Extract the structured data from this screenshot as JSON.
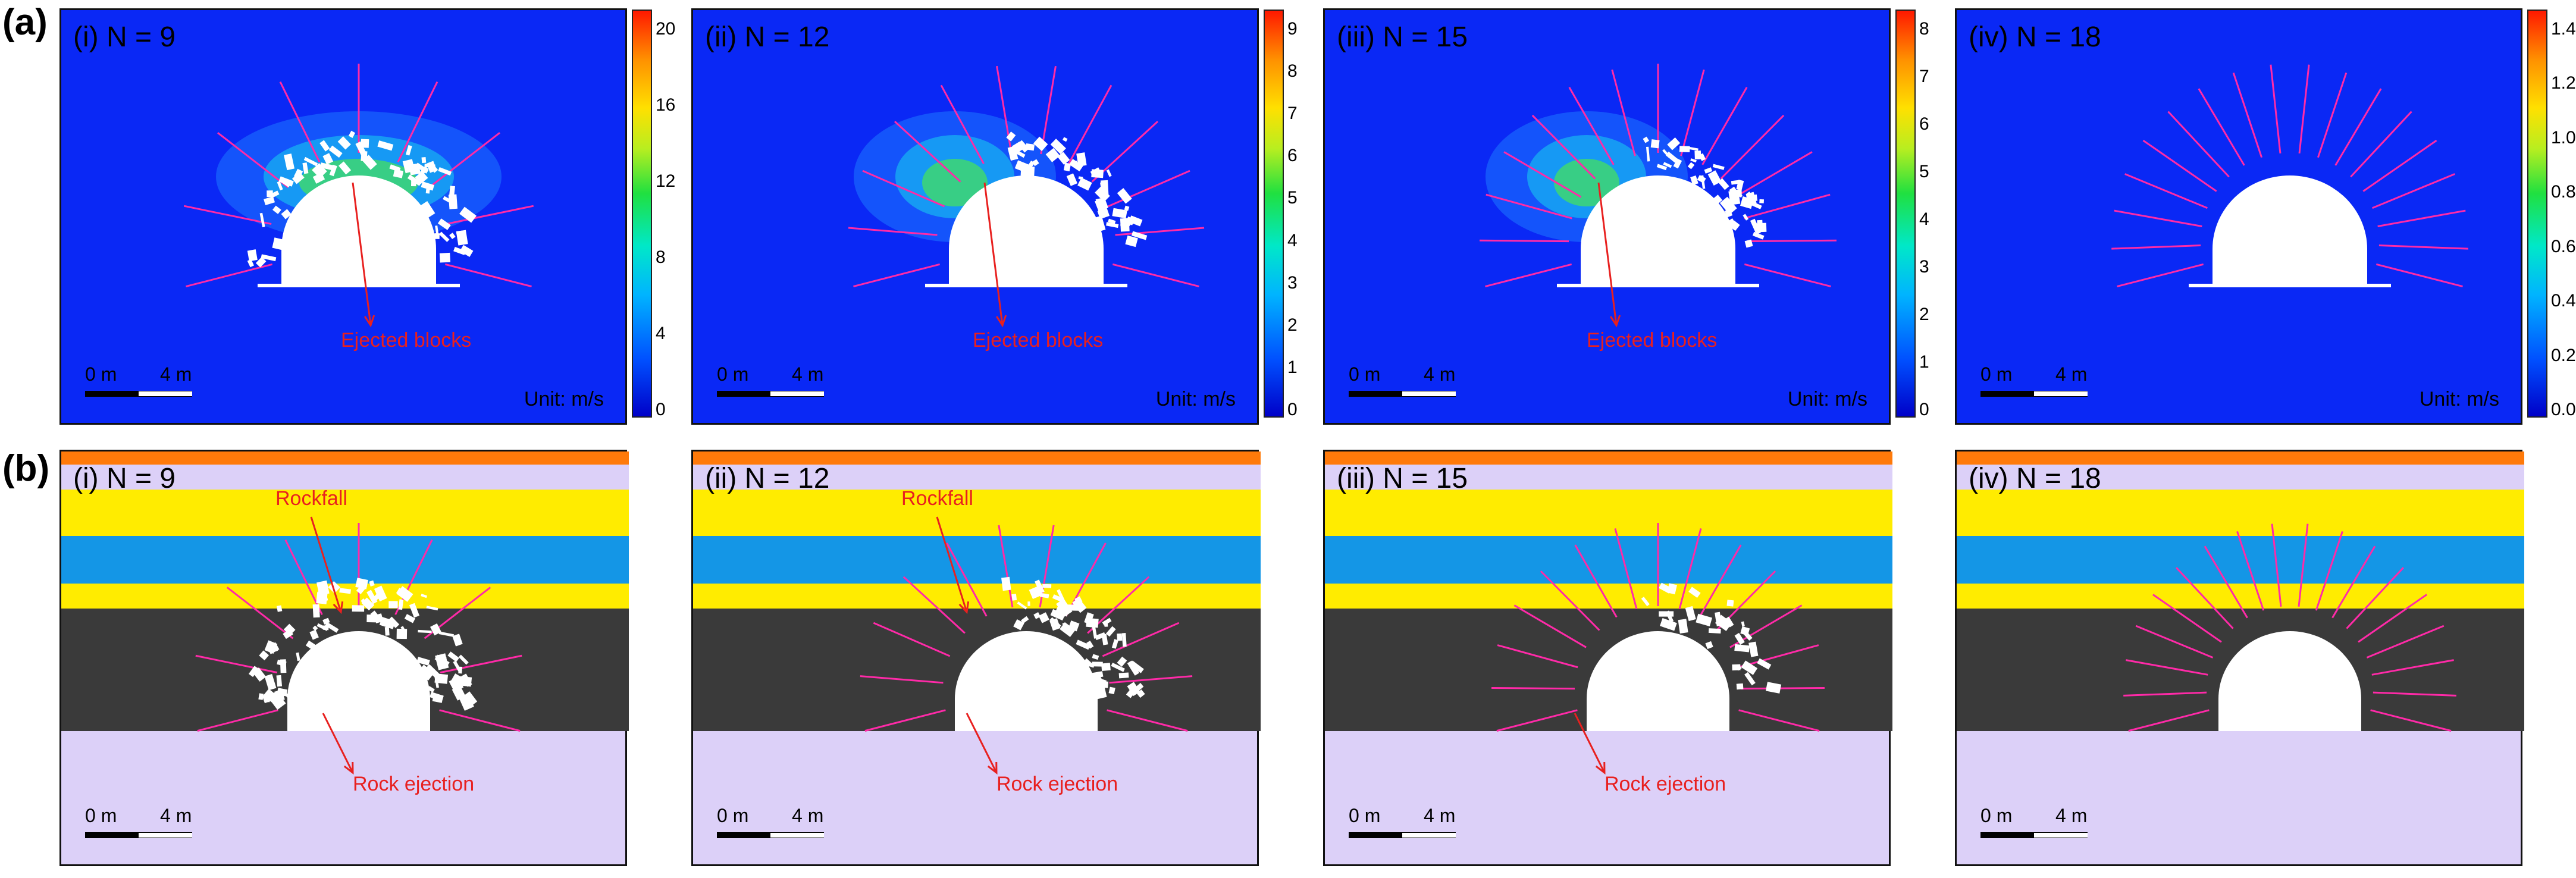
{
  "figure": {
    "row_a_label": "(a)",
    "row_b_label": "(b)",
    "unit_text": "Unit: m/s",
    "scale_zero": "0 m",
    "scale_four": "4 m",
    "colors": {
      "background_velocity": "#0a28f5",
      "rock_dark": "#3a3a3a",
      "layer_yellow": "#ffec00",
      "layer_blue": "#1496e6",
      "layer_lavender": "#dcd0f8",
      "layer_orange": "#ff7a0a",
      "bolt_magenta": "#ff2aa8",
      "annotation_red": "#e8201f"
    }
  },
  "row_a": [
    {
      "label": "(i) N = 9",
      "annotation": "Ejected blocks",
      "colorbar": [
        "20",
        "16",
        "12",
        "8",
        "4",
        "0"
      ]
    },
    {
      "label": "(ii) N = 12",
      "annotation": "Ejected blocks",
      "colorbar": [
        "9",
        "8",
        "7",
        "6",
        "5",
        "4",
        "3",
        "2",
        "1",
        "0"
      ]
    },
    {
      "label": "(iii) N = 15",
      "annotation": "Ejected blocks",
      "colorbar": [
        "8",
        "7",
        "6",
        "5",
        "4",
        "3",
        "2",
        "1",
        "0"
      ]
    },
    {
      "label": "(iv) N = 18",
      "annotation": "",
      "colorbar": [
        "1.4",
        "1.2",
        "1.0",
        "0.8",
        "0.6",
        "0.4",
        "0.2",
        "0.0"
      ]
    }
  ],
  "row_b": [
    {
      "label": "(i) N = 9",
      "rockfall": "Rockfall",
      "ejection": "Rock ejection"
    },
    {
      "label": "(ii) N = 12",
      "rockfall": "Rockfall",
      "ejection": "Rock ejection"
    },
    {
      "label": "(iii) N = 15",
      "rockfall": "",
      "ejection": "Rock ejection"
    },
    {
      "label": "(iv) N = 18",
      "rockfall": "",
      "ejection": ""
    }
  ]
}
